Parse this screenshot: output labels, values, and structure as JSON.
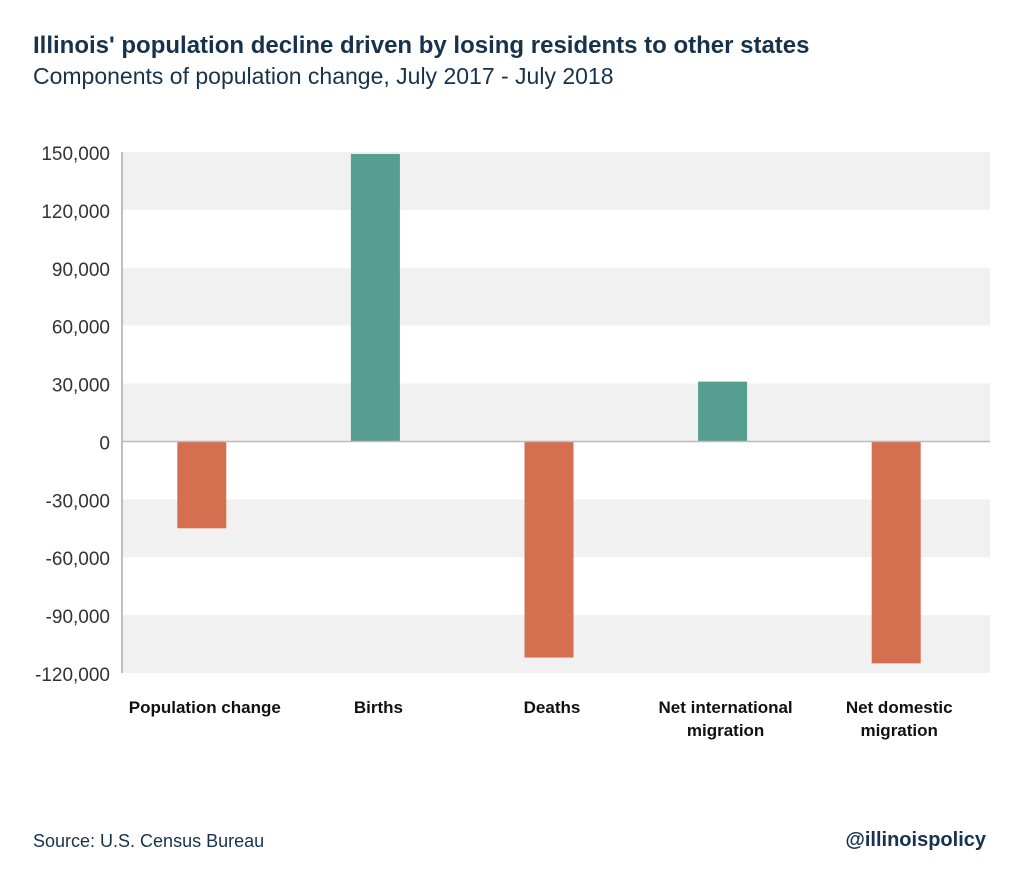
{
  "title": "Illinois' population decline driven by losing residents to other states",
  "subtitle": "Components of population change, July 2017 - July 2018",
  "source": "Source: U.S. Census Bureau",
  "handle": "@illinoispolicy",
  "colors": {
    "positive": "#579d90",
    "negative": "#d4704f",
    "band": "#f1f1f1",
    "title": "#17324d"
  },
  "chart_data": {
    "type": "bar",
    "categories": [
      [
        "Population change"
      ],
      [
        "Births"
      ],
      [
        "Deaths"
      ],
      [
        "Net international",
        "migration"
      ],
      [
        "Net domestic",
        "migration"
      ]
    ],
    "values": [
      -45000,
      149000,
      -112000,
      31000,
      -115000
    ],
    "ylim": [
      -120000,
      150000
    ],
    "yticks": [
      150000,
      120000,
      90000,
      60000,
      30000,
      0,
      -30000,
      -60000,
      -90000,
      -120000
    ],
    "ytick_labels": [
      "150,000",
      "120,000",
      "90,000",
      "60,000",
      "30,000",
      "0",
      "-30,000",
      "-60,000",
      "-90,000",
      "-120,000"
    ],
    "grid": "alternating bands",
    "legend": "none"
  }
}
